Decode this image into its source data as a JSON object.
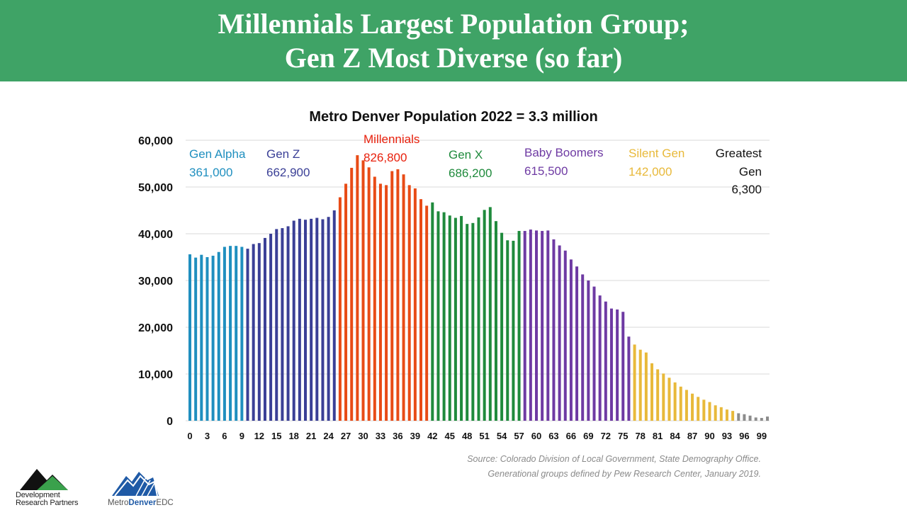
{
  "title": {
    "line1": "Millennials Largest Population Group;",
    "line2": "Gen Z Most Diverse (so far)"
  },
  "colors": {
    "banner": "#3fa366",
    "gen_alpha": "#1f8fbf",
    "gen_z": "#3a3f96",
    "millennials": "#e84b16",
    "gen_x": "#1f8a3c",
    "baby_boomers": "#6e3aa3",
    "silent_gen": "#e8b93a",
    "greatest_gen": "#8c8c8c"
  },
  "chart_data": {
    "type": "bar",
    "title": "Metro Denver Population 2022 = 3.3 million",
    "xlabel": "",
    "ylabel": "",
    "ylim": [
      0,
      60000
    ],
    "y_ticks": [
      "0",
      "10,000",
      "20,000",
      "30,000",
      "40,000",
      "50,000",
      "60,000"
    ],
    "x_tick_labels": [
      "0",
      "3",
      "6",
      "9",
      "12",
      "15",
      "18",
      "21",
      "24",
      "27",
      "30",
      "33",
      "36",
      "39",
      "42",
      "45",
      "48",
      "51",
      "54",
      "57",
      "60",
      "63",
      "66",
      "69",
      "72",
      "75",
      "78",
      "81",
      "84",
      "87",
      "90",
      "93",
      "96",
      "99"
    ],
    "categories": [
      0,
      1,
      2,
      3,
      4,
      5,
      6,
      7,
      8,
      9,
      10,
      11,
      12,
      13,
      14,
      15,
      16,
      17,
      18,
      19,
      20,
      21,
      22,
      23,
      24,
      25,
      26,
      27,
      28,
      29,
      30,
      31,
      32,
      33,
      34,
      35,
      36,
      37,
      38,
      39,
      40,
      41,
      42,
      43,
      44,
      45,
      46,
      47,
      48,
      49,
      50,
      51,
      52,
      53,
      54,
      55,
      56,
      57,
      58,
      59,
      60,
      61,
      62,
      63,
      64,
      65,
      66,
      67,
      68,
      69,
      70,
      71,
      72,
      73,
      74,
      75,
      76,
      77,
      78,
      79,
      80,
      81,
      82,
      83,
      84,
      85,
      86,
      87,
      88,
      89,
      90,
      91,
      92,
      93,
      94,
      95,
      96,
      97,
      98,
      99,
      100
    ],
    "values": [
      35600,
      34900,
      35500,
      35000,
      35300,
      36100,
      37200,
      37400,
      37400,
      37200,
      36800,
      37800,
      38000,
      39100,
      40000,
      41000,
      41200,
      41600,
      42800,
      43200,
      43000,
      43200,
      43400,
      43100,
      43600,
      45000,
      47800,
      50700,
      54100,
      56800,
      55700,
      54200,
      52200,
      50700,
      50400,
      53400,
      53800,
      52700,
      50400,
      49700,
      47400,
      46000,
      46700,
      44800,
      44600,
      43900,
      43400,
      43800,
      42100,
      42300,
      43500,
      45100,
      45700,
      42700,
      40200,
      38600,
      38500,
      40600,
      40600,
      40900,
      40700,
      40600,
      40700,
      38800,
      37500,
      36400,
      34500,
      33000,
      31300,
      30000,
      28700,
      26800,
      25500,
      24000,
      23800,
      23300,
      18000,
      16300,
      15200,
      14600,
      12300,
      11000,
      10100,
      9200,
      8200,
      7300,
      6600,
      5800,
      5100,
      4500,
      4000,
      3300,
      2900,
      2400,
      2100,
      1600,
      1400,
      1100,
      700,
      600,
      900
    ],
    "groups": [
      {
        "name": "Gen Alpha",
        "total": "361,000",
        "from": 0,
        "to": 9,
        "color": "#1f8fbf"
      },
      {
        "name": "Gen Z",
        "total": "662,900",
        "from": 10,
        "to": 25,
        "color": "#3a3f96"
      },
      {
        "name": "Millennials",
        "total": "826,800",
        "from": 26,
        "to": 41,
        "color": "#e84b16"
      },
      {
        "name": "Gen X",
        "total": "686,200",
        "from": 42,
        "to": 57,
        "color": "#1f8a3c"
      },
      {
        "name": "Baby Boomers",
        "total": "615,500",
        "from": 58,
        "to": 76,
        "color": "#6e3aa3"
      },
      {
        "name": "Silent Gen",
        "total": "142,000",
        "from": 77,
        "to": 94,
        "color": "#e8b93a"
      },
      {
        "name": "Greatest Gen",
        "total": "6,300",
        "from": 95,
        "to": 100,
        "color": "#8c8c8c"
      }
    ],
    "annotations": {
      "gen_alpha": {
        "name": "Gen Alpha",
        "value": "361,000"
      },
      "gen_z": {
        "name": "Gen Z",
        "value": "662,900"
      },
      "millennials": {
        "name": "Millennials",
        "value": "826,800"
      },
      "gen_x": {
        "name": "Gen X",
        "value": "686,200"
      },
      "baby_boomers": {
        "name": "Baby Boomers",
        "value": "615,500"
      },
      "silent_gen": {
        "name": "Silent Gen",
        "value": "142,000"
      },
      "greatest_gen": {
        "name1": "Greatest",
        "name2": "Gen",
        "value": "6,300"
      }
    },
    "grid": true,
    "legend": "none"
  },
  "source": {
    "line1": "Source:  Colorado Division of Local Government, State Demography Office.",
    "line2": "Generational groups defined by Pew Research Center, January 2019."
  },
  "logos": {
    "drp": "Development Research Partners",
    "edc_prefix": "Metro",
    "edc_bold": "Denver",
    "edc_suffix": "EDC"
  }
}
